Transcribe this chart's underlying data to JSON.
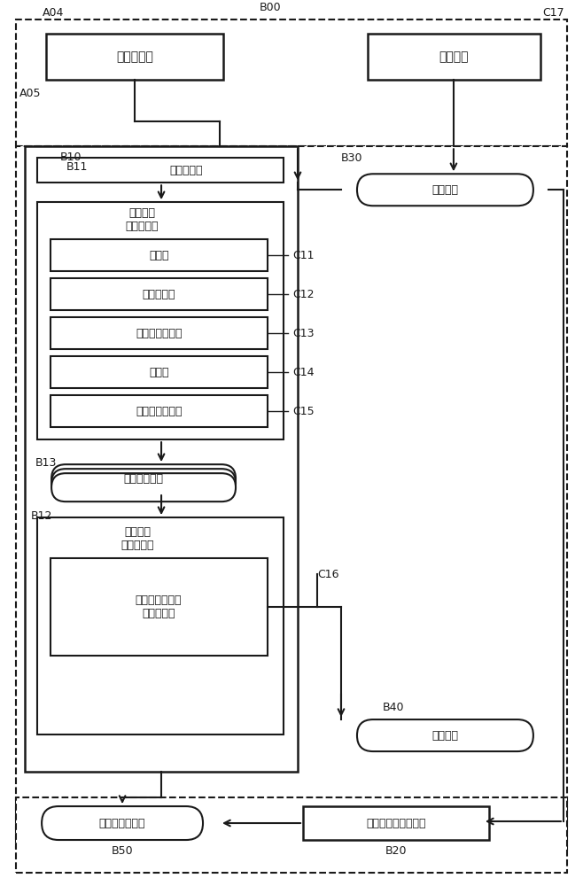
{
  "fig_width": 6.58,
  "fig_height": 10.0,
  "bg_color": "#ffffff",
  "lc": "#1a1a1a",
  "text": {
    "sanwei_celiangqi": "三维计测器",
    "shijiao_huamian": "示教画面",
    "moxing_shengcheng_bu": "模型生成部",
    "moxing_cece_shuju_tiqu_bu": "模型计测\n数据提取部",
    "saomu_bu": "扫描部",
    "quyu_sheding_bu": "区域设定部",
    "linshi_moxing_shengcheng_bu": "临时模型生成部",
    "jiance_bu": "检测部",
    "jiance_chengbai_zhishi_bu": "检测成败指示部",
    "moxing_cece_shuju": "模型计测数据",
    "moxing_cece_shuju_zhenghe_bu": "模型计测\n数据整合部",
    "buzhengque_moxing_cece_shuju_chuqu_bu": "不正确模型计测\n数据除去部",
    "cece_shuju": "计测数据",
    "sanwei_moxing": "三维模型",
    "gongJian_weizhi_zitai": "工件的位置姿态",
    "gongJian_weizhi_zitai_jisuan_bu": "工件位置姿态计算部"
  },
  "labels": {
    "A04": "A04",
    "A05": "A05",
    "B00": "B00",
    "C17": "C17",
    "B10": "B10",
    "B11": "B11",
    "B13": "B13",
    "B12": "B12",
    "B30": "B30",
    "B40": "B40",
    "B50": "B50",
    "B20": "B20",
    "C11": "C11",
    "C12": "C12",
    "C13": "C13",
    "C14": "C14",
    "C15": "C15",
    "C16": "C16"
  }
}
